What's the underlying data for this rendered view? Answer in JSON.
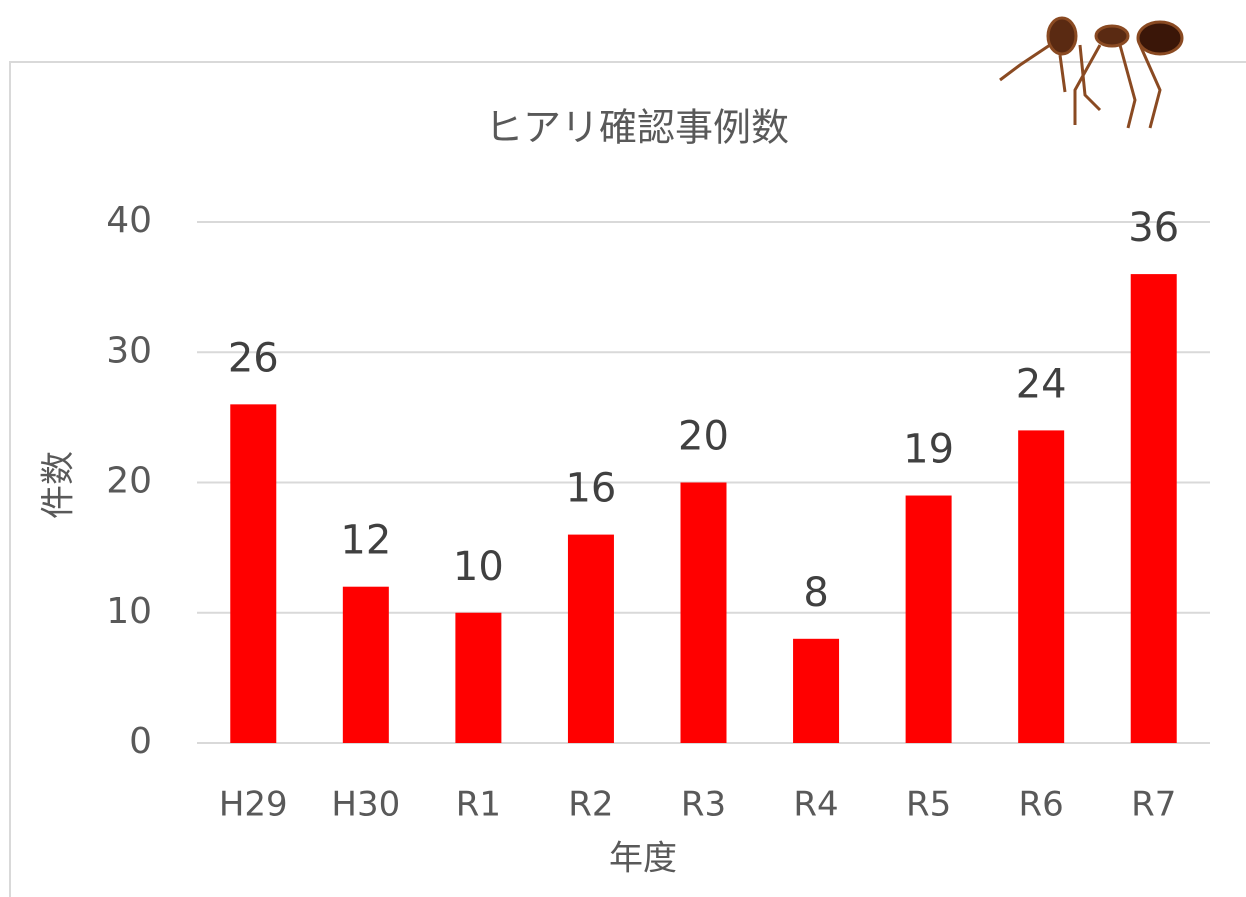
{
  "chart_data": {
    "type": "bar",
    "title": "ヒアリ確認事例数",
    "x_label": "年度",
    "y_label": "件数",
    "categories": [
      "H29",
      "H30",
      "R1",
      "R2",
      "R3",
      "R4",
      "R5",
      "R6",
      "R7"
    ],
    "values": [
      26,
      12,
      10,
      16,
      20,
      8,
      19,
      24,
      36
    ],
    "color": "#ff0000",
    "ylim": [
      0,
      40
    ],
    "yticks": [
      0,
      10,
      20,
      30,
      40
    ],
    "grid": true
  }
}
